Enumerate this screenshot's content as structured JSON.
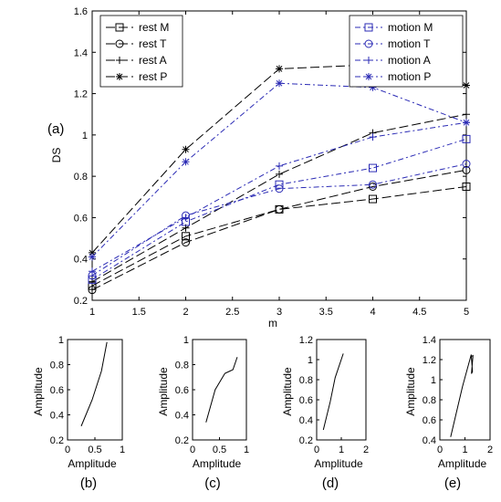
{
  "chart_data": [
    {
      "type": "line",
      "panel_label": "(a)",
      "xlabel": "m",
      "ylabel": "DS",
      "xlim": [
        1,
        5
      ],
      "ylim": [
        0.2,
        1.6
      ],
      "xticks": [
        "1",
        "1.5",
        "2",
        "2.5",
        "3",
        "3.5",
        "4",
        "4.5",
        "5"
      ],
      "yticks": [
        "0.2",
        "0.4",
        "0.6",
        "0.8",
        "1",
        "1.2",
        "1.4",
        "1.6"
      ],
      "x": [
        1,
        2,
        3,
        4,
        5
      ],
      "legend_rest_placement": "top-left",
      "legend_motion_placement": "top-right",
      "series": [
        {
          "name": "rest M",
          "color": "#000000",
          "marker": "square",
          "values": [
            0.27,
            0.51,
            0.64,
            0.69,
            0.75
          ]
        },
        {
          "name": "rest T",
          "color": "#000000",
          "marker": "circle",
          "values": [
            0.25,
            0.48,
            0.64,
            0.75,
            0.83
          ]
        },
        {
          "name": "rest A",
          "color": "#000000",
          "marker": "plus",
          "values": [
            0.29,
            0.55,
            0.81,
            1.01,
            1.1
          ]
        },
        {
          "name": "rest P",
          "color": "#000000",
          "marker": "asterisk",
          "values": [
            0.43,
            0.93,
            1.32,
            1.34,
            1.24
          ]
        },
        {
          "name": "motion M",
          "color": "#2b2bb5",
          "marker": "square",
          "values": [
            0.3,
            0.58,
            0.76,
            0.84,
            0.98
          ]
        },
        {
          "name": "motion T",
          "color": "#2b2bb5",
          "marker": "circle",
          "values": [
            0.32,
            0.61,
            0.74,
            0.76,
            0.86
          ]
        },
        {
          "name": "motion A",
          "color": "#2b2bb5",
          "marker": "plus",
          "values": [
            0.34,
            0.6,
            0.85,
            0.99,
            1.06
          ]
        },
        {
          "name": "motion P",
          "color": "#2b2bb5",
          "marker": "asterisk",
          "values": [
            0.41,
            0.87,
            1.25,
            1.23,
            1.06
          ]
        }
      ]
    },
    {
      "type": "line",
      "panel_label": "(b)",
      "xlabel": "Amplitude",
      "ylabel": "Amplitude",
      "xlim": [
        0,
        1
      ],
      "ylim": [
        0.2,
        1.0
      ],
      "xticks": [
        "0",
        "0.5",
        "1"
      ],
      "xtick_values": [
        0,
        0.5,
        1
      ],
      "yticks": [
        "0.2",
        "0.4",
        "0.6",
        "0.8",
        "1"
      ],
      "ytick_values": [
        0.2,
        0.4,
        0.6,
        0.8,
        1.0
      ],
      "x": [
        0.25,
        0.45,
        0.62,
        0.72
      ],
      "values": [
        0.31,
        0.52,
        0.75,
        0.98
      ]
    },
    {
      "type": "line",
      "panel_label": "(c)",
      "xlabel": "Amplitude",
      "ylabel": "Amplitude",
      "xlim": [
        0,
        1
      ],
      "ylim": [
        0.2,
        1.0
      ],
      "xticks": [
        "0",
        "0.5",
        "1"
      ],
      "xtick_values": [
        0,
        0.5,
        1
      ],
      "yticks": [
        "0.2",
        "0.4",
        "0.6",
        "0.8",
        "1"
      ],
      "ytick_values": [
        0.2,
        0.4,
        0.6,
        0.8,
        1.0
      ],
      "x": [
        0.25,
        0.42,
        0.6,
        0.7,
        0.75,
        0.83
      ],
      "values": [
        0.34,
        0.6,
        0.73,
        0.75,
        0.76,
        0.86
      ]
    },
    {
      "type": "line",
      "panel_label": "(d)",
      "xlabel": "Amplitude",
      "ylabel": "Amplitude",
      "xlim": [
        0,
        2
      ],
      "ylim": [
        0.2,
        1.2
      ],
      "xticks": [
        "0",
        "1",
        "2"
      ],
      "xtick_values": [
        0,
        1,
        2
      ],
      "yticks": [
        "0.2",
        "0.4",
        "0.6",
        "0.8",
        "1",
        "1.2"
      ],
      "ytick_values": [
        0.2,
        0.4,
        0.6,
        0.8,
        1.0,
        1.2
      ],
      "x": [
        0.27,
        0.55,
        0.75,
        1.08
      ],
      "values": [
        0.3,
        0.58,
        0.82,
        1.06
      ]
    },
    {
      "type": "line",
      "panel_label": "(e)",
      "xlabel": "Amplitude",
      "ylabel": "Amplitude",
      "xlim": [
        0,
        2
      ],
      "ylim": [
        0.4,
        1.4
      ],
      "xticks": [
        "0",
        "1",
        "2"
      ],
      "xtick_values": [
        0,
        1,
        2
      ],
      "yticks": [
        "0.4",
        "0.6",
        "0.8",
        "1",
        "1.2",
        "1.4"
      ],
      "ytick_values": [
        0.4,
        0.6,
        0.8,
        1.0,
        1.2,
        1.4
      ],
      "x": [
        0.43,
        0.9,
        1.25,
        1.3,
        1.26,
        1.32,
        1.24
      ],
      "values": [
        0.43,
        0.93,
        1.25,
        1.08,
        1.06,
        1.24,
        1.23
      ]
    }
  ]
}
